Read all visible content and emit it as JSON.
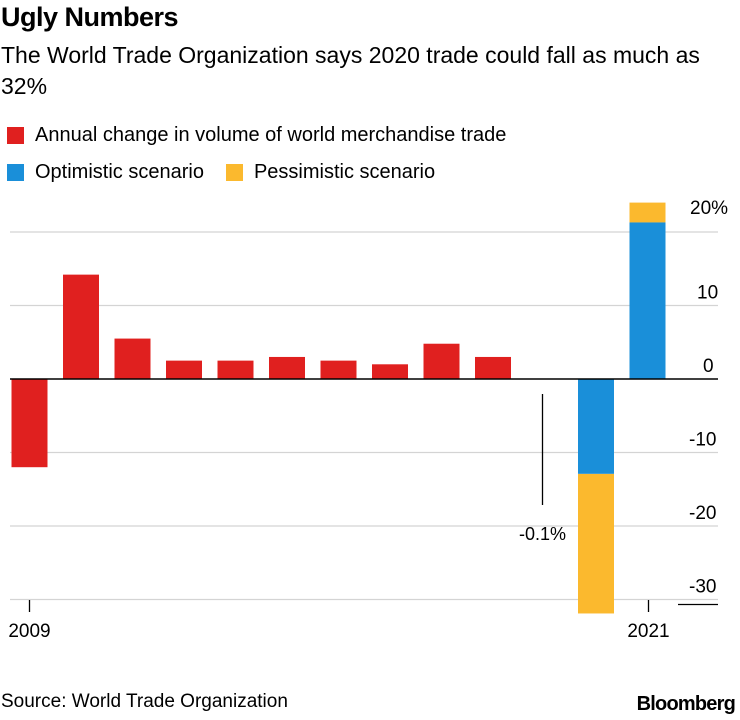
{
  "title": "Ugly Numbers",
  "subtitle": "The World Trade Organization says 2020 trade could fall as much as 32%",
  "legend": [
    {
      "label": "Annual change in volume of world merchandise trade",
      "color": "#e0201f"
    },
    {
      "label": "Optimistic scenario",
      "color": "#1a8fd9"
    },
    {
      "label": "Pessimistic scenario",
      "color": "#fbb92e"
    }
  ],
  "source": "Source: World Trade Organization",
  "brand": "Bloomberg",
  "chart_data": {
    "type": "bar",
    "title": "Ugly Numbers",
    "x_labels": [
      "2009",
      "2021"
    ],
    "ylim": [
      -32,
      24
    ],
    "y_ticks": [
      {
        "value": 20,
        "label": "20%"
      },
      {
        "value": 10,
        "label": "10"
      },
      {
        "value": 0,
        "label": "0"
      },
      {
        "value": -10,
        "label": "-10"
      },
      {
        "value": -20,
        "label": "-20"
      },
      {
        "value": -30,
        "label": "-30"
      }
    ],
    "grid": true,
    "series": [
      {
        "name": "Annual change in volume of world merchandise trade",
        "color": "#e0201f",
        "points": [
          {
            "x": 2009,
            "value": -12.0
          },
          {
            "x": 2010,
            "value": 14.2
          },
          {
            "x": 2011,
            "value": 5.5
          },
          {
            "x": 2012,
            "value": 2.5
          },
          {
            "x": 2013,
            "value": 2.5
          },
          {
            "x": 2014,
            "value": 3.0
          },
          {
            "x": 2015,
            "value": 2.5
          },
          {
            "x": 2016,
            "value": 2.0
          },
          {
            "x": 2017,
            "value": 4.8
          },
          {
            "x": 2018,
            "value": 3.0
          },
          {
            "x": 2019,
            "value": -0.1
          }
        ]
      },
      {
        "name": "Optimistic scenario",
        "color": "#1a8fd9",
        "points": [
          {
            "x": 2020,
            "value": -12.9
          },
          {
            "x": 2021,
            "value": 21.3
          }
        ]
      },
      {
        "name": "Pessimistic scenario",
        "color": "#fbb92e",
        "points": [
          {
            "x": 2020,
            "value": -31.9
          },
          {
            "x": 2021,
            "value": 24.0
          }
        ]
      }
    ],
    "annotation": {
      "x": 2019,
      "text": "-0.1%"
    }
  }
}
